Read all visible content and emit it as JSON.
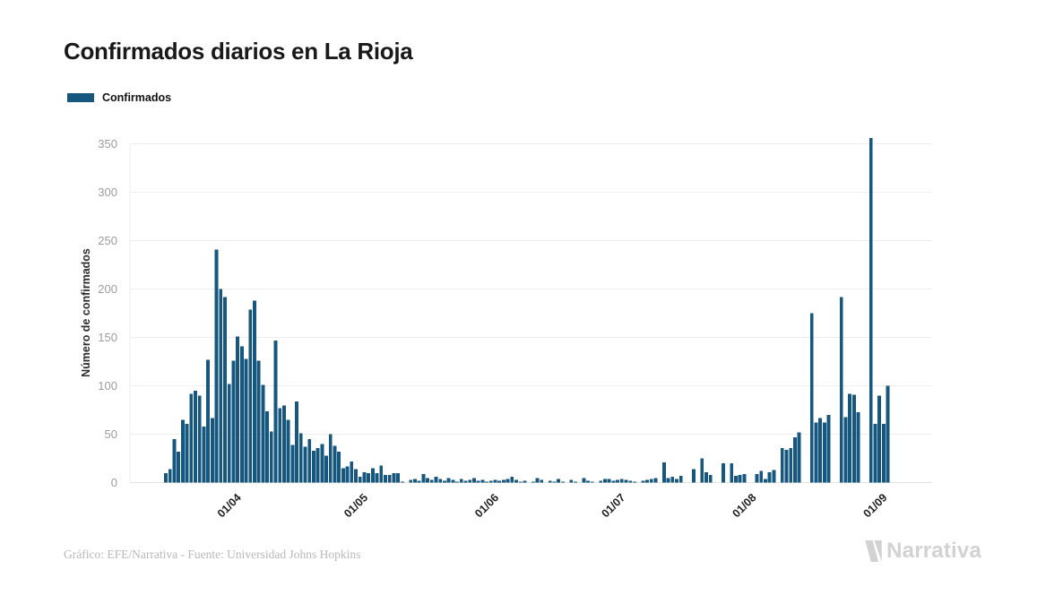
{
  "header": {
    "title": "Confirmados diarios en La Rioja"
  },
  "legend": {
    "items": [
      {
        "label": "Confirmados",
        "color": "#15577e"
      }
    ]
  },
  "footer": {
    "credit": "Gráfico: EFE/Narrativa - Fuente: Universidad Johns Hopkins",
    "brand": "Narrativa"
  },
  "chart_data": {
    "type": "bar",
    "title": "Confirmados diarios en La Rioja",
    "series_name": "Confirmados",
    "bar_color": "#15577e",
    "ylabel": "Número de confirmados",
    "ylim": [
      0,
      350
    ],
    "yticks": [
      0,
      50,
      100,
      150,
      200,
      250,
      300,
      350
    ],
    "grid": "horizontal",
    "legend_position": "top-left",
    "xtick_labels": [
      "01/04",
      "01/05",
      "01/06",
      "01/07",
      "01/08",
      "01/09"
    ],
    "xtick_indices": [
      15,
      45,
      76,
      106,
      137,
      168
    ],
    "values": [
      10,
      14,
      45,
      32,
      65,
      61,
      92,
      95,
      90,
      58,
      127,
      67,
      241,
      200,
      192,
      102,
      126,
      151,
      141,
      128,
      179,
      188,
      126,
      101,
      74,
      53,
      147,
      77,
      80,
      65,
      39,
      84,
      51,
      37,
      45,
      33,
      36,
      40,
      28,
      50,
      38,
      32,
      15,
      17,
      22,
      14,
      6,
      11,
      10,
      15,
      10,
      18,
      8,
      8,
      10,
      10,
      1,
      0,
      3,
      4,
      2,
      9,
      5,
      3,
      6,
      4,
      2,
      5,
      3,
      1,
      4,
      2,
      3,
      5,
      2,
      3,
      1,
      2,
      3,
      2,
      3,
      4,
      6,
      3,
      1,
      2,
      0,
      1,
      5,
      3,
      0,
      2,
      1,
      4,
      1,
      0,
      3,
      1,
      0,
      5,
      2,
      1,
      0,
      2,
      4,
      4,
      2,
      3,
      4,
      3,
      2,
      1,
      0,
      2,
      3,
      4,
      5,
      0,
      21,
      5,
      6,
      4,
      7,
      0,
      0,
      14,
      0,
      25,
      11,
      8,
      0,
      0,
      20,
      0,
      20,
      7,
      8,
      9,
      0,
      0,
      9,
      12,
      4,
      11,
      13,
      0,
      36,
      34,
      36,
      47,
      52,
      0,
      0,
      175,
      62,
      67,
      62,
      70,
      0,
      0,
      192,
      68,
      92,
      91,
      73,
      0,
      0,
      356,
      61,
      90,
      61,
      100
    ]
  }
}
